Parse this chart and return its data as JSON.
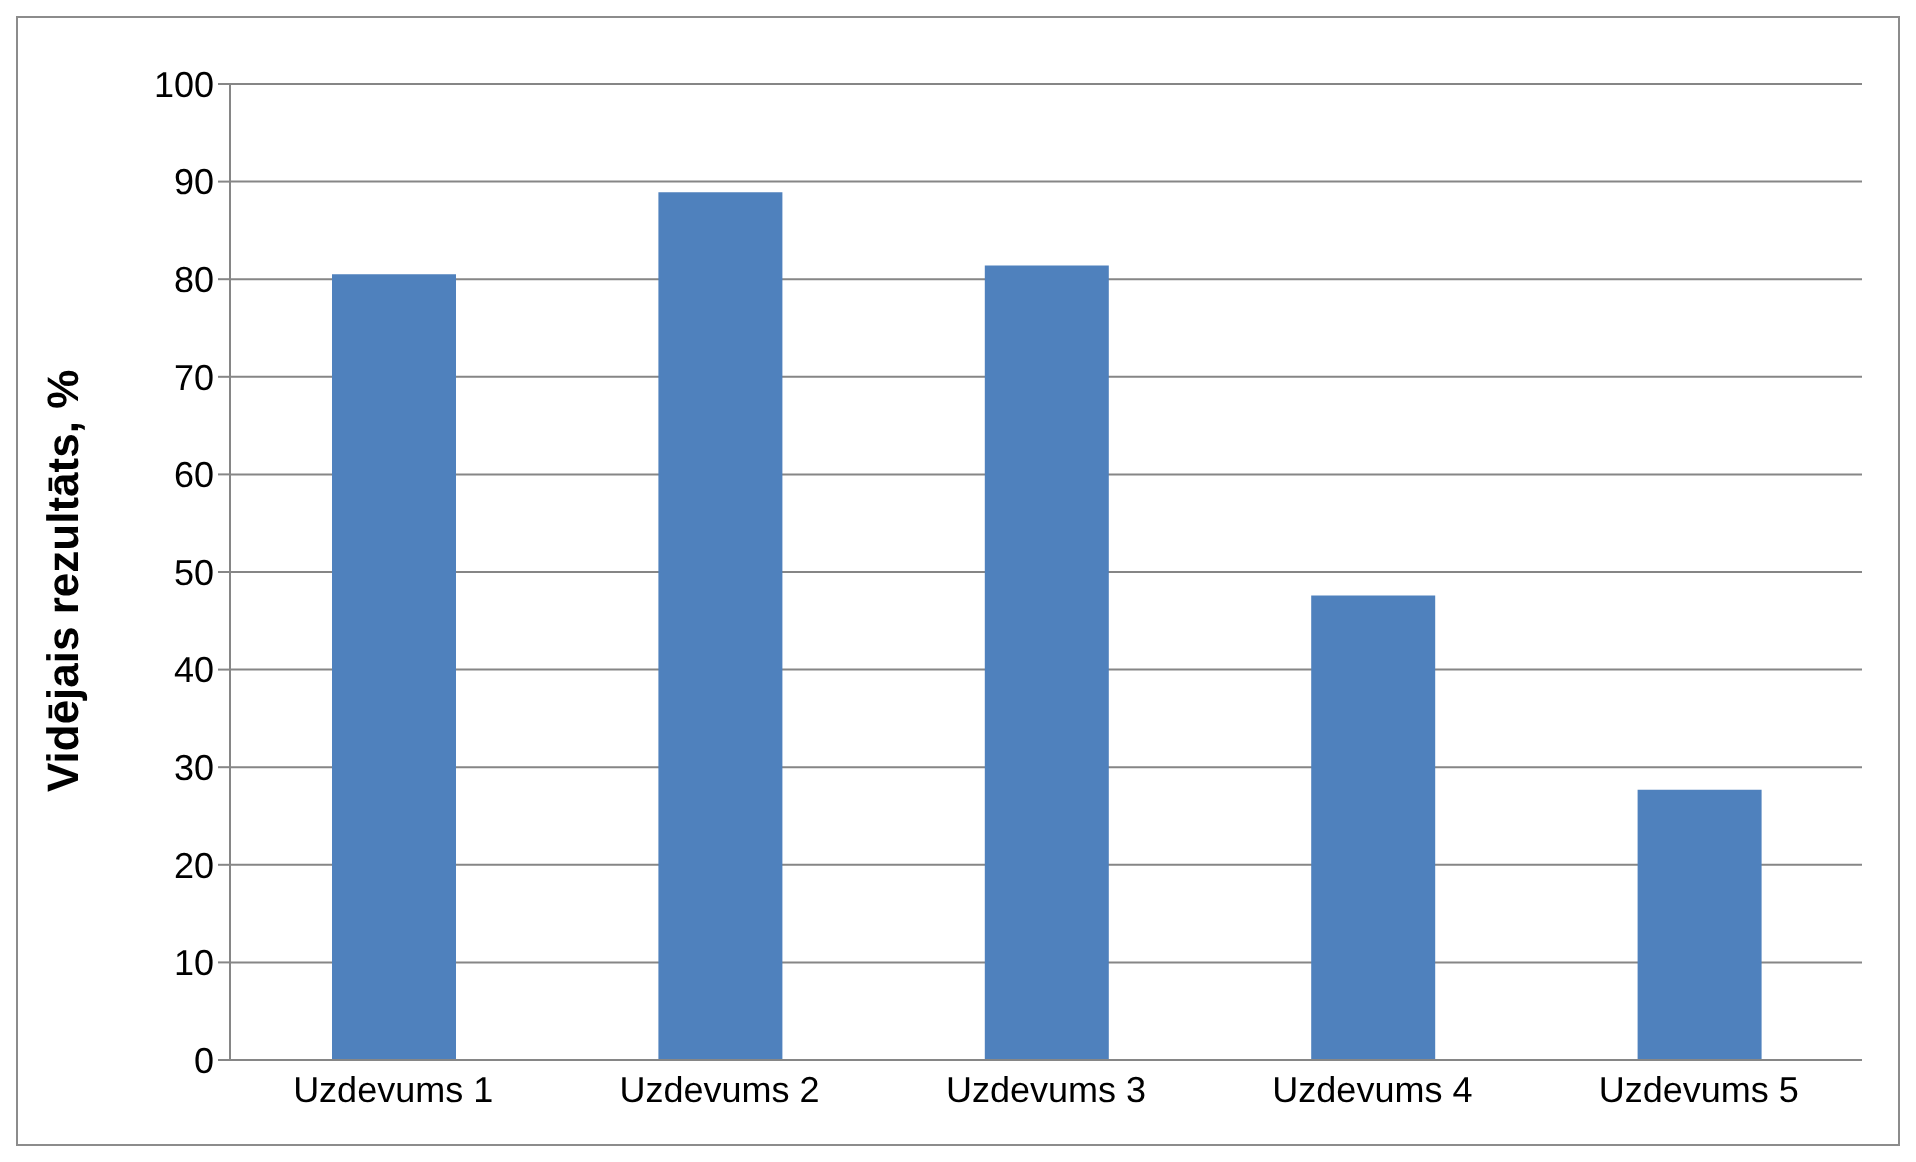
{
  "chart_data": {
    "type": "bar",
    "ylabel": "Vidējais rezultāts, %",
    "categories": [
      "Uzdevums 1",
      "Uzdevums 2",
      "Uzdevums 3",
      "Uzdevums 4",
      "Uzdevums 5"
    ],
    "values": [
      80.5,
      88.9,
      81.4,
      47.6,
      27.7
    ],
    "color": "#4f81bd",
    "ylim": [
      0,
      100
    ],
    "yticks": [
      0,
      10,
      20,
      30,
      40,
      50,
      60,
      70,
      80,
      90,
      100
    ],
    "grid": "y",
    "legend": false
  }
}
